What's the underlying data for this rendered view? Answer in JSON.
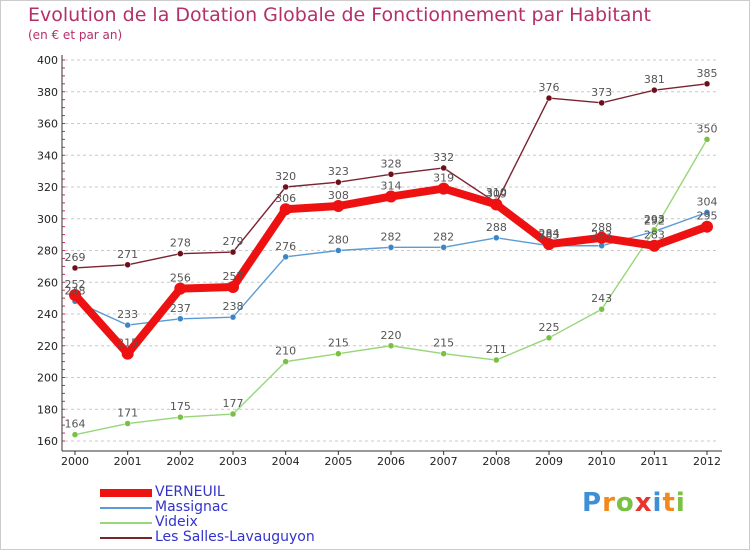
{
  "title": "Evolution de la Dotation Globale de Fonctionnement par Habitant",
  "subtitle": "(en € et par an)",
  "brand": {
    "text": "Proxiti",
    "letters": [
      {
        "char": "P",
        "color": "#3d8fd6"
      },
      {
        "char": "r",
        "color": "#f08a1c"
      },
      {
        "char": "o",
        "color": "#7ac143"
      },
      {
        "char": "x",
        "color": "#e8342e"
      },
      {
        "char": "i",
        "color": "#3d8fd6"
      },
      {
        "char": "t",
        "color": "#f08a1c"
      },
      {
        "char": "i",
        "color": "#7ac143"
      }
    ]
  },
  "chart_data": {
    "type": "line",
    "title": "Evolution de la Dotation Globale de Fonctionnement par Habitant",
    "subtitle": "(en € et par an)",
    "xlabel": "",
    "ylabel": "",
    "categories": [
      "2000",
      "2001",
      "2002",
      "2003",
      "2004",
      "2005",
      "2006",
      "2007",
      "2008",
      "2009",
      "2010",
      "2011",
      "2012"
    ],
    "ylim": [
      160,
      400
    ],
    "yticks": [
      160,
      180,
      200,
      220,
      240,
      260,
      280,
      300,
      320,
      340,
      360,
      380,
      400
    ],
    "grid": "horizontal dashed",
    "legend_position": "bottom-left",
    "series": [
      {
        "name": "Les Salles-Lavauguyon",
        "color": "#7a2430",
        "marker_color": "#6b0f1a",
        "width": 1.4,
        "values": [
          269,
          271,
          278,
          279,
          320,
          323,
          328,
          332,
          310,
          376,
          373,
          381,
          385
        ]
      },
      {
        "name": "Massignac",
        "color": "#5b9bd5",
        "marker_color": "#3d86c6",
        "width": 1.4,
        "values": [
          248,
          233,
          237,
          238,
          276,
          280,
          282,
          282,
          288,
          283,
          283,
          292,
          304
        ]
      },
      {
        "name": "Videix",
        "color": "#98d67a",
        "marker_color": "#7ac143",
        "width": 1.4,
        "values": [
          164,
          171,
          175,
          177,
          210,
          215,
          220,
          215,
          211,
          225,
          243,
          293,
          350
        ]
      },
      {
        "name": "VERNEUIL",
        "color": "#ee1111",
        "marker_color": "#ee1111",
        "width": 8,
        "values": [
          252,
          215,
          256,
          257,
          306,
          308,
          314,
          319,
          309,
          284,
          288,
          283,
          295
        ]
      }
    ]
  }
}
